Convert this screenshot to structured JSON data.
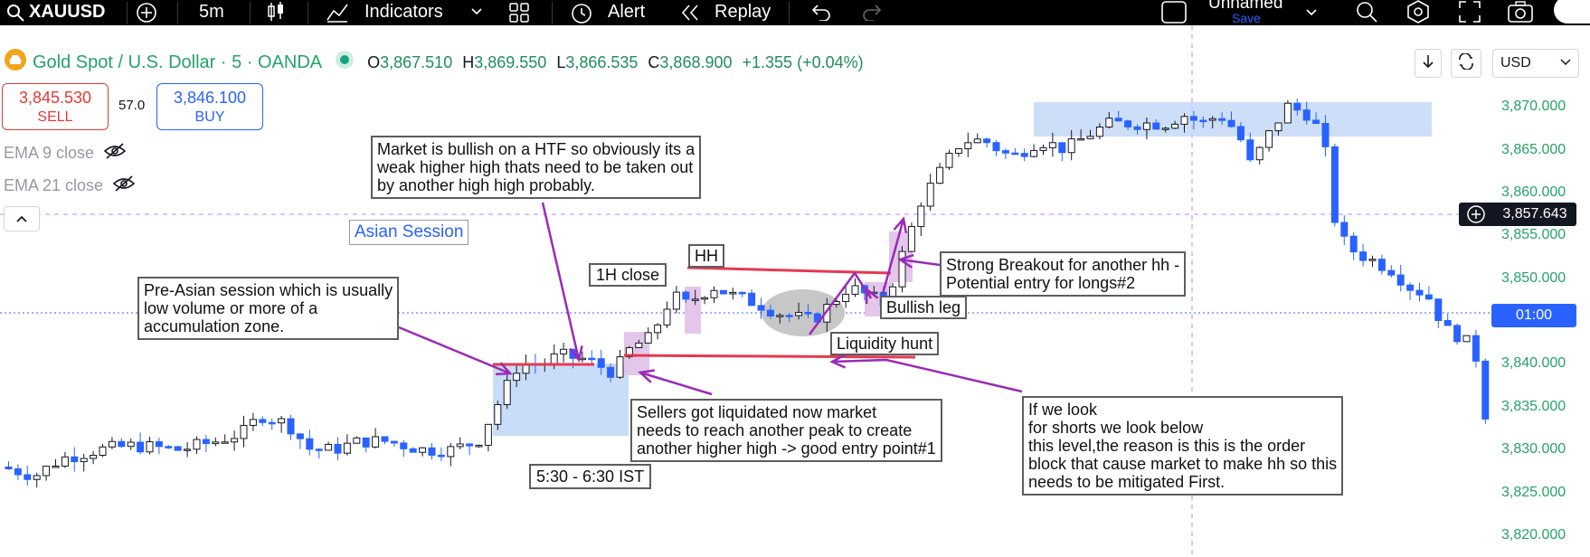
{
  "toolbar": {
    "symbol": "XAUUSD",
    "interval": "5m",
    "indicators_label": "Indicators",
    "alert_label": "Alert",
    "replay_label": "Replay",
    "layout_name": "Unnamed",
    "save_label": "Save"
  },
  "legend": {
    "title": "Gold Spot / U.S. Dollar · 5 · OANDA",
    "open_key": "O",
    "open": "3,867.510",
    "high_key": "H",
    "high": "3,869.550",
    "low_key": "L",
    "low": "3,866.535",
    "close_key": "C",
    "close": "3,868.900",
    "change": "+1.355 (+0.04%)"
  },
  "trading": {
    "sell_price": "3,845.530",
    "sell_label": "SELL",
    "spread": "57.0",
    "buy_price": "3,846.100",
    "buy_label": "BUY"
  },
  "indicators": [
    {
      "label": "EMA 9 close"
    },
    {
      "label": "EMA 21 close"
    }
  ],
  "top_right": {
    "currency": "USD"
  },
  "price_axis": {
    "labels": [
      "3,870.000",
      "3,865.000",
      "3,860.000",
      "3,855.000",
      "3,850.000",
      "3,840.000",
      "3,835.000",
      "3,830.000",
      "3,825.000",
      "3,820.000"
    ],
    "crosshair_price": "3,857.643",
    "countdown": "01:00",
    "colors": {
      "up": "#26a269",
      "down": "#2962ff",
      "tag_dark": "#131722",
      "tag_blue": "#2962ff"
    }
  },
  "annotations": {
    "asian_session": "Asian Session",
    "htf_note": [
      "Market is bullish on a HTF so obviously its a",
      "weak higher high thats need to be taken out",
      "by another high high probably."
    ],
    "pre_asian_note": [
      "Pre-Asian session which is usually",
      "low volume or more of a",
      "accumulation zone."
    ],
    "one_h_close": "1H close",
    "hh": "HH",
    "breakout_note": [
      "Strong Breakout for another hh -",
      "Potential entry for longs#2"
    ],
    "bullish_leg": "Bullish leg",
    "liquidity_hunt": "Liquidity hunt",
    "sellers_note": [
      "Sellers got liquidated now market",
      "needs to reach another peak to create",
      "another higher high -> good entry point#1"
    ],
    "session_time": "5:30 - 6:30 IST",
    "shorts_note": [
      "If we look",
      "for shorts we look below",
      "this level,the reason is this is the order",
      "block that cause market to make hh so this",
      "needs to be mitigated First."
    ]
  }
}
